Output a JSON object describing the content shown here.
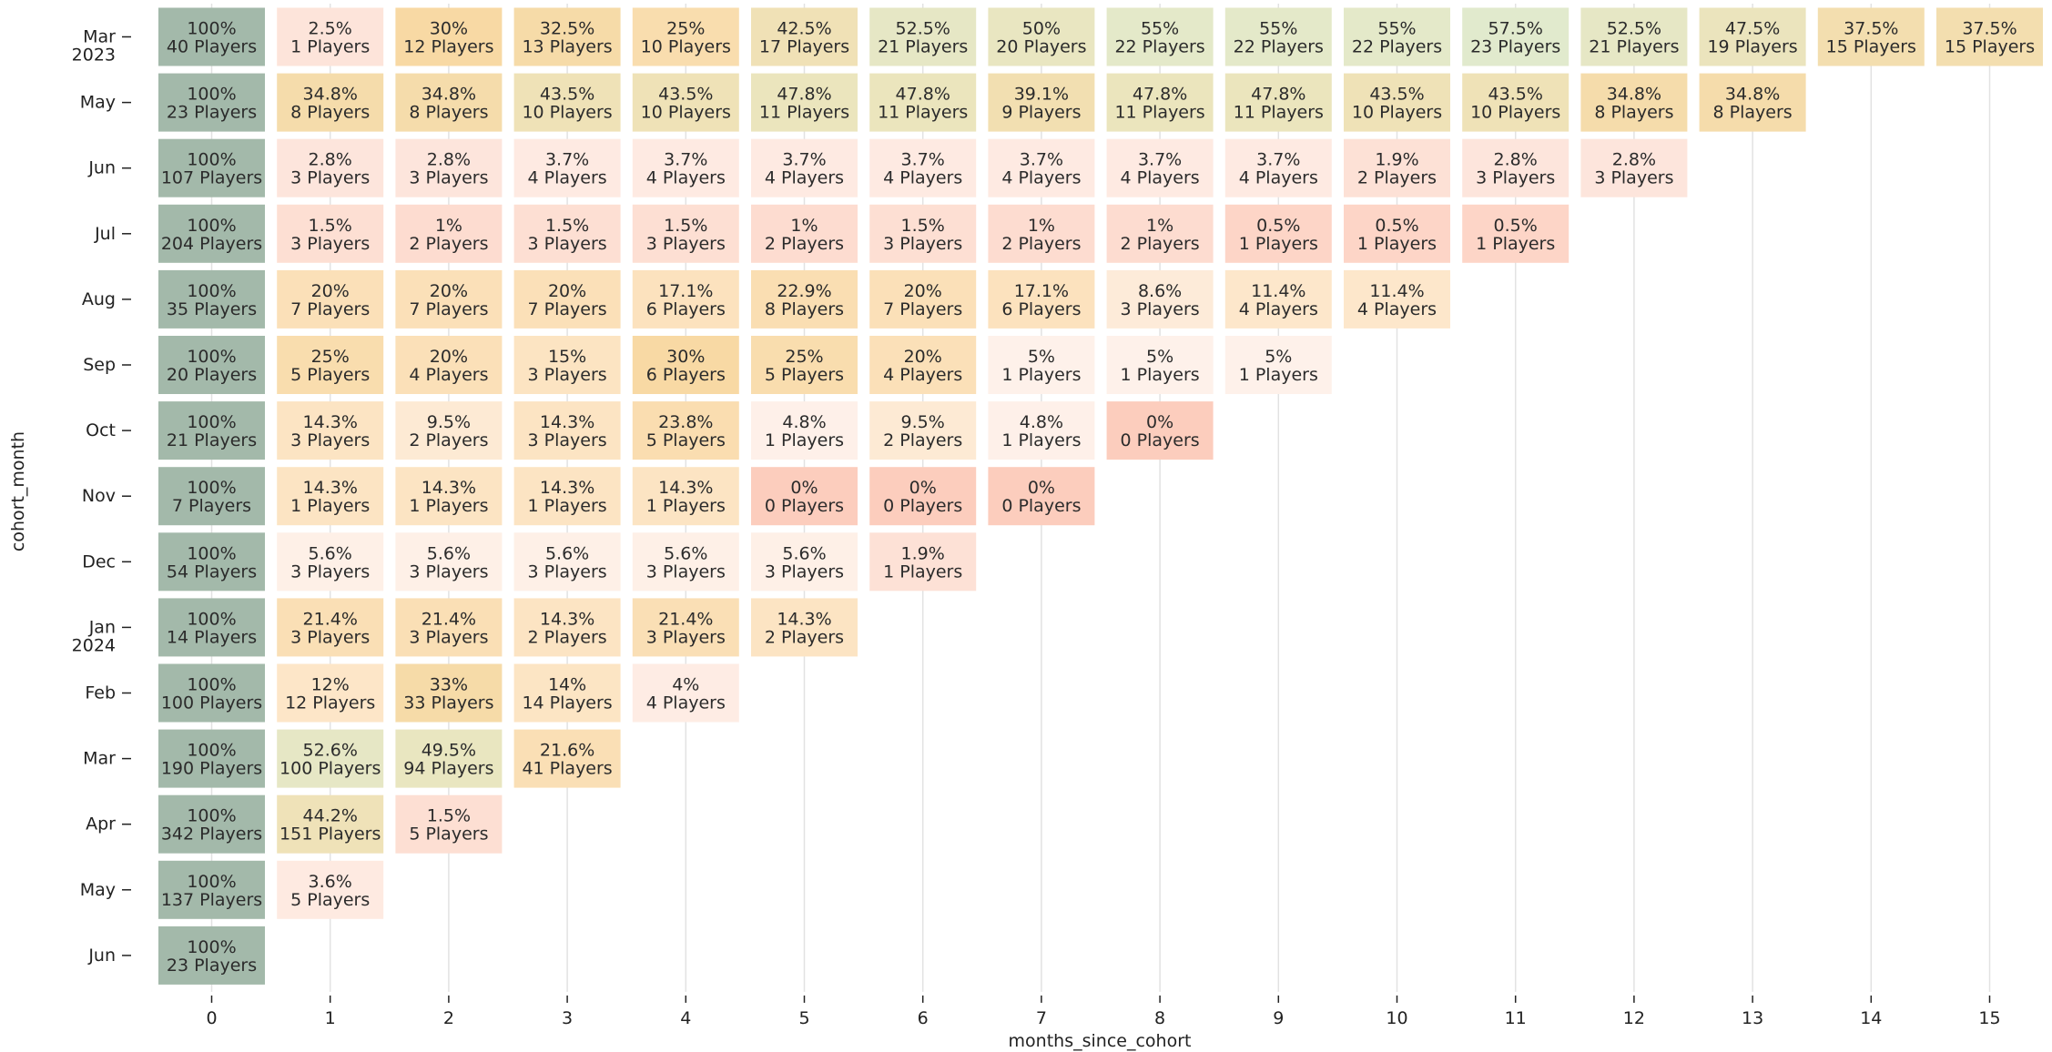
{
  "chart_data": {
    "type": "heatmap",
    "title": "",
    "xlabel": "months_since_cohort",
    "ylabel": "cohort_month",
    "x_ticks": [
      "0",
      "1",
      "2",
      "3",
      "4",
      "5",
      "6",
      "7",
      "8",
      "9",
      "10",
      "11",
      "12",
      "13",
      "14",
      "15"
    ],
    "rows": [
      {
        "label": "Mar",
        "year": "2023",
        "cells": [
          {
            "pct": "100%",
            "players": "40 Players",
            "v": 100
          },
          {
            "pct": "2.5%",
            "players": "1 Players",
            "v": 2.5
          },
          {
            "pct": "30%",
            "players": "12 Players",
            "v": 30
          },
          {
            "pct": "32.5%",
            "players": "13 Players",
            "v": 32.5
          },
          {
            "pct": "25%",
            "players": "10 Players",
            "v": 25
          },
          {
            "pct": "42.5%",
            "players": "17 Players",
            "v": 42.5
          },
          {
            "pct": "52.5%",
            "players": "21 Players",
            "v": 52.5
          },
          {
            "pct": "50%",
            "players": "20 Players",
            "v": 50
          },
          {
            "pct": "55%",
            "players": "22 Players",
            "v": 55
          },
          {
            "pct": "55%",
            "players": "22 Players",
            "v": 55
          },
          {
            "pct": "55%",
            "players": "22 Players",
            "v": 55
          },
          {
            "pct": "57.5%",
            "players": "23 Players",
            "v": 57.5
          },
          {
            "pct": "52.5%",
            "players": "21 Players",
            "v": 52.5
          },
          {
            "pct": "47.5%",
            "players": "19 Players",
            "v": 47.5
          },
          {
            "pct": "37.5%",
            "players": "15 Players",
            "v": 37.5
          },
          {
            "pct": "37.5%",
            "players": "15 Players",
            "v": 37.5
          }
        ]
      },
      {
        "label": "May",
        "year": "",
        "cells": [
          {
            "pct": "100%",
            "players": "23 Players",
            "v": 100
          },
          {
            "pct": "34.8%",
            "players": "8 Players",
            "v": 34.8
          },
          {
            "pct": "34.8%",
            "players": "8 Players",
            "v": 34.8
          },
          {
            "pct": "43.5%",
            "players": "10 Players",
            "v": 43.5
          },
          {
            "pct": "43.5%",
            "players": "10 Players",
            "v": 43.5
          },
          {
            "pct": "47.8%",
            "players": "11 Players",
            "v": 47.8
          },
          {
            "pct": "47.8%",
            "players": "11 Players",
            "v": 47.8
          },
          {
            "pct": "39.1%",
            "players": "9 Players",
            "v": 39.1
          },
          {
            "pct": "47.8%",
            "players": "11 Players",
            "v": 47.8
          },
          {
            "pct": "47.8%",
            "players": "11 Players",
            "v": 47.8
          },
          {
            "pct": "43.5%",
            "players": "10 Players",
            "v": 43.5
          },
          {
            "pct": "43.5%",
            "players": "10 Players",
            "v": 43.5
          },
          {
            "pct": "34.8%",
            "players": "8 Players",
            "v": 34.8
          },
          {
            "pct": "34.8%",
            "players": "8 Players",
            "v": 34.8
          }
        ]
      },
      {
        "label": "Jun",
        "year": "",
        "cells": [
          {
            "pct": "100%",
            "players": "107 Players",
            "v": 100
          },
          {
            "pct": "2.8%",
            "players": "3 Players",
            "v": 2.8
          },
          {
            "pct": "2.8%",
            "players": "3 Players",
            "v": 2.8
          },
          {
            "pct": "3.7%",
            "players": "4 Players",
            "v": 3.7
          },
          {
            "pct": "3.7%",
            "players": "4 Players",
            "v": 3.7
          },
          {
            "pct": "3.7%",
            "players": "4 Players",
            "v": 3.7
          },
          {
            "pct": "3.7%",
            "players": "4 Players",
            "v": 3.7
          },
          {
            "pct": "3.7%",
            "players": "4 Players",
            "v": 3.7
          },
          {
            "pct": "3.7%",
            "players": "4 Players",
            "v": 3.7
          },
          {
            "pct": "3.7%",
            "players": "4 Players",
            "v": 3.7
          },
          {
            "pct": "1.9%",
            "players": "2 Players",
            "v": 1.9
          },
          {
            "pct": "2.8%",
            "players": "3 Players",
            "v": 2.8
          },
          {
            "pct": "2.8%",
            "players": "3 Players",
            "v": 2.8
          }
        ]
      },
      {
        "label": "Jul",
        "year": "",
        "cells": [
          {
            "pct": "100%",
            "players": "204 Players",
            "v": 100
          },
          {
            "pct": "1.5%",
            "players": "3 Players",
            "v": 1.5
          },
          {
            "pct": "1%",
            "players": "2 Players",
            "v": 1
          },
          {
            "pct": "1.5%",
            "players": "3 Players",
            "v": 1.5
          },
          {
            "pct": "1.5%",
            "players": "3 Players",
            "v": 1.5
          },
          {
            "pct": "1%",
            "players": "2 Players",
            "v": 1
          },
          {
            "pct": "1.5%",
            "players": "3 Players",
            "v": 1.5
          },
          {
            "pct": "1%",
            "players": "2 Players",
            "v": 1
          },
          {
            "pct": "1%",
            "players": "2 Players",
            "v": 1
          },
          {
            "pct": "0.5%",
            "players": "1 Players",
            "v": 0.5
          },
          {
            "pct": "0.5%",
            "players": "1 Players",
            "v": 0.5
          },
          {
            "pct": "0.5%",
            "players": "1 Players",
            "v": 0.5
          }
        ]
      },
      {
        "label": "Aug",
        "year": "",
        "cells": [
          {
            "pct": "100%",
            "players": "35 Players",
            "v": 100
          },
          {
            "pct": "20%",
            "players": "7 Players",
            "v": 20
          },
          {
            "pct": "20%",
            "players": "7 Players",
            "v": 20
          },
          {
            "pct": "20%",
            "players": "7 Players",
            "v": 20
          },
          {
            "pct": "17.1%",
            "players": "6 Players",
            "v": 17.1
          },
          {
            "pct": "22.9%",
            "players": "8 Players",
            "v": 22.9
          },
          {
            "pct": "20%",
            "players": "7 Players",
            "v": 20
          },
          {
            "pct": "17.1%",
            "players": "6 Players",
            "v": 17.1
          },
          {
            "pct": "8.6%",
            "players": "3 Players",
            "v": 8.6
          },
          {
            "pct": "11.4%",
            "players": "4 Players",
            "v": 11.4
          },
          {
            "pct": "11.4%",
            "players": "4 Players",
            "v": 11.4
          }
        ]
      },
      {
        "label": "Sep",
        "year": "",
        "cells": [
          {
            "pct": "100%",
            "players": "20 Players",
            "v": 100
          },
          {
            "pct": "25%",
            "players": "5 Players",
            "v": 25
          },
          {
            "pct": "20%",
            "players": "4 Players",
            "v": 20
          },
          {
            "pct": "15%",
            "players": "3 Players",
            "v": 15
          },
          {
            "pct": "30%",
            "players": "6 Players",
            "v": 30
          },
          {
            "pct": "25%",
            "players": "5 Players",
            "v": 25
          },
          {
            "pct": "20%",
            "players": "4 Players",
            "v": 20
          },
          {
            "pct": "5%",
            "players": "1 Players",
            "v": 5
          },
          {
            "pct": "5%",
            "players": "1 Players",
            "v": 5
          },
          {
            "pct": "5%",
            "players": "1 Players",
            "v": 5
          }
        ]
      },
      {
        "label": "Oct",
        "year": "",
        "cells": [
          {
            "pct": "100%",
            "players": "21 Players",
            "v": 100
          },
          {
            "pct": "14.3%",
            "players": "3 Players",
            "v": 14.3
          },
          {
            "pct": "9.5%",
            "players": "2 Players",
            "v": 9.5
          },
          {
            "pct": "14.3%",
            "players": "3 Players",
            "v": 14.3
          },
          {
            "pct": "23.8%",
            "players": "5 Players",
            "v": 23.8
          },
          {
            "pct": "4.8%",
            "players": "1 Players",
            "v": 4.8
          },
          {
            "pct": "9.5%",
            "players": "2 Players",
            "v": 9.5
          },
          {
            "pct": "4.8%",
            "players": "1 Players",
            "v": 4.8
          },
          {
            "pct": "0%",
            "players": "0 Players",
            "v": 0
          }
        ]
      },
      {
        "label": "Nov",
        "year": "",
        "cells": [
          {
            "pct": "100%",
            "players": "7 Players",
            "v": 100
          },
          {
            "pct": "14.3%",
            "players": "1 Players",
            "v": 14.3
          },
          {
            "pct": "14.3%",
            "players": "1 Players",
            "v": 14.3
          },
          {
            "pct": "14.3%",
            "players": "1 Players",
            "v": 14.3
          },
          {
            "pct": "14.3%",
            "players": "1 Players",
            "v": 14.3
          },
          {
            "pct": "0%",
            "players": "0 Players",
            "v": 0
          },
          {
            "pct": "0%",
            "players": "0 Players",
            "v": 0
          },
          {
            "pct": "0%",
            "players": "0 Players",
            "v": 0
          }
        ]
      },
      {
        "label": "Dec",
        "year": "",
        "cells": [
          {
            "pct": "100%",
            "players": "54 Players",
            "v": 100
          },
          {
            "pct": "5.6%",
            "players": "3 Players",
            "v": 5.6
          },
          {
            "pct": "5.6%",
            "players": "3 Players",
            "v": 5.6
          },
          {
            "pct": "5.6%",
            "players": "3 Players",
            "v": 5.6
          },
          {
            "pct": "5.6%",
            "players": "3 Players",
            "v": 5.6
          },
          {
            "pct": "5.6%",
            "players": "3 Players",
            "v": 5.6
          },
          {
            "pct": "1.9%",
            "players": "1 Players",
            "v": 1.9
          }
        ]
      },
      {
        "label": "Jan",
        "year": "2024",
        "cells": [
          {
            "pct": "100%",
            "players": "14 Players",
            "v": 100
          },
          {
            "pct": "21.4%",
            "players": "3 Players",
            "v": 21.4
          },
          {
            "pct": "21.4%",
            "players": "3 Players",
            "v": 21.4
          },
          {
            "pct": "14.3%",
            "players": "2 Players",
            "v": 14.3
          },
          {
            "pct": "21.4%",
            "players": "3 Players",
            "v": 21.4
          },
          {
            "pct": "14.3%",
            "players": "2 Players",
            "v": 14.3
          }
        ]
      },
      {
        "label": "Feb",
        "year": "",
        "cells": [
          {
            "pct": "100%",
            "players": "100 Players",
            "v": 100
          },
          {
            "pct": "12%",
            "players": "12 Players",
            "v": 12
          },
          {
            "pct": "33%",
            "players": "33 Players",
            "v": 33
          },
          {
            "pct": "14%",
            "players": "14 Players",
            "v": 14
          },
          {
            "pct": "4%",
            "players": "4 Players",
            "v": 4
          }
        ]
      },
      {
        "label": "Mar",
        "year": "",
        "cells": [
          {
            "pct": "100%",
            "players": "190 Players",
            "v": 100
          },
          {
            "pct": "52.6%",
            "players": "100 Players",
            "v": 52.6
          },
          {
            "pct": "49.5%",
            "players": "94 Players",
            "v": 49.5
          },
          {
            "pct": "21.6%",
            "players": "41 Players",
            "v": 21.6
          }
        ]
      },
      {
        "label": "Apr",
        "year": "",
        "cells": [
          {
            "pct": "100%",
            "players": "342 Players",
            "v": 100
          },
          {
            "pct": "44.2%",
            "players": "151 Players",
            "v": 44.2
          },
          {
            "pct": "1.5%",
            "players": "5 Players",
            "v": 1.5
          }
        ]
      },
      {
        "label": "May",
        "year": "",
        "cells": [
          {
            "pct": "100%",
            "players": "137 Players",
            "v": 100
          },
          {
            "pct": "3.6%",
            "players": "5 Players",
            "v": 3.6
          }
        ]
      },
      {
        "label": "Jun",
        "year": "",
        "cells": [
          {
            "pct": "100%",
            "players": "23 Players",
            "v": 100
          }
        ]
      }
    ],
    "grid": "vertical"
  }
}
